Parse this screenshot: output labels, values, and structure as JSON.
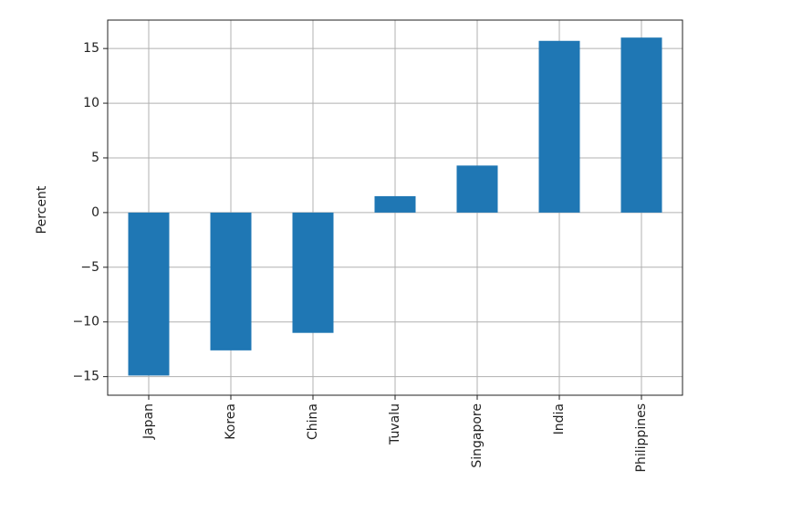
{
  "chart_data": {
    "type": "bar",
    "ylabel": "Percent",
    "categories": [
      "Japan",
      "Korea",
      "China",
      "Tuvalu",
      "Singapore",
      "India",
      "Philippines"
    ],
    "values": [
      -14.9,
      -12.6,
      -11.0,
      1.5,
      4.3,
      15.7,
      16.0
    ],
    "color": "#1f77b4",
    "ylim": [
      -16.7,
      17.6
    ],
    "yticks": [
      {
        "value": -15,
        "label": "−15"
      },
      {
        "value": -10,
        "label": "−10"
      },
      {
        "value": -5,
        "label": "−5"
      },
      0,
      5,
      10,
      15
    ],
    "grid": true
  }
}
